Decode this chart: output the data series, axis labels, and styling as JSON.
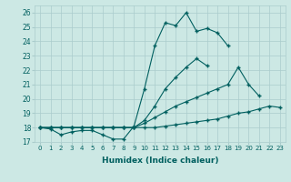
{
  "xlabel": "Humidex (Indice chaleur)",
  "xlim": [
    -0.5,
    23.5
  ],
  "ylim": [
    17,
    26.5
  ],
  "yticks": [
    17,
    18,
    19,
    20,
    21,
    22,
    23,
    24,
    25,
    26
  ],
  "xticks": [
    0,
    1,
    2,
    3,
    4,
    5,
    6,
    7,
    8,
    9,
    10,
    11,
    12,
    13,
    14,
    15,
    16,
    17,
    18,
    19,
    20,
    21,
    22,
    23
  ],
  "bg_color": "#cce8e4",
  "grid_color": "#aacccc",
  "line_color": "#005f5f",
  "lines": [
    [
      18.0,
      17.9,
      17.5,
      17.7,
      17.8,
      17.8,
      17.5,
      17.2,
      17.2,
      18.1,
      20.7,
      23.7,
      25.3,
      25.1,
      26.0,
      24.7,
      24.9,
      24.6,
      23.7,
      null,
      null,
      null,
      null,
      null
    ],
    [
      18.0,
      18.0,
      18.0,
      18.0,
      18.0,
      18.0,
      18.0,
      18.0,
      18.0,
      18.0,
      18.5,
      19.5,
      20.7,
      21.5,
      22.2,
      22.8,
      22.3,
      null,
      null,
      null,
      null,
      null,
      null,
      null
    ],
    [
      18.0,
      18.0,
      18.0,
      18.0,
      18.0,
      18.0,
      18.0,
      18.0,
      18.0,
      18.0,
      18.3,
      18.7,
      19.1,
      19.5,
      19.8,
      20.1,
      20.4,
      20.7,
      21.0,
      22.2,
      21.0,
      20.2,
      null,
      null
    ],
    [
      18.0,
      18.0,
      18.0,
      18.0,
      18.0,
      18.0,
      18.0,
      18.0,
      18.0,
      18.0,
      18.0,
      18.0,
      18.1,
      18.2,
      18.3,
      18.4,
      18.5,
      18.6,
      18.8,
      19.0,
      19.1,
      19.3,
      19.5,
      19.4
    ]
  ]
}
